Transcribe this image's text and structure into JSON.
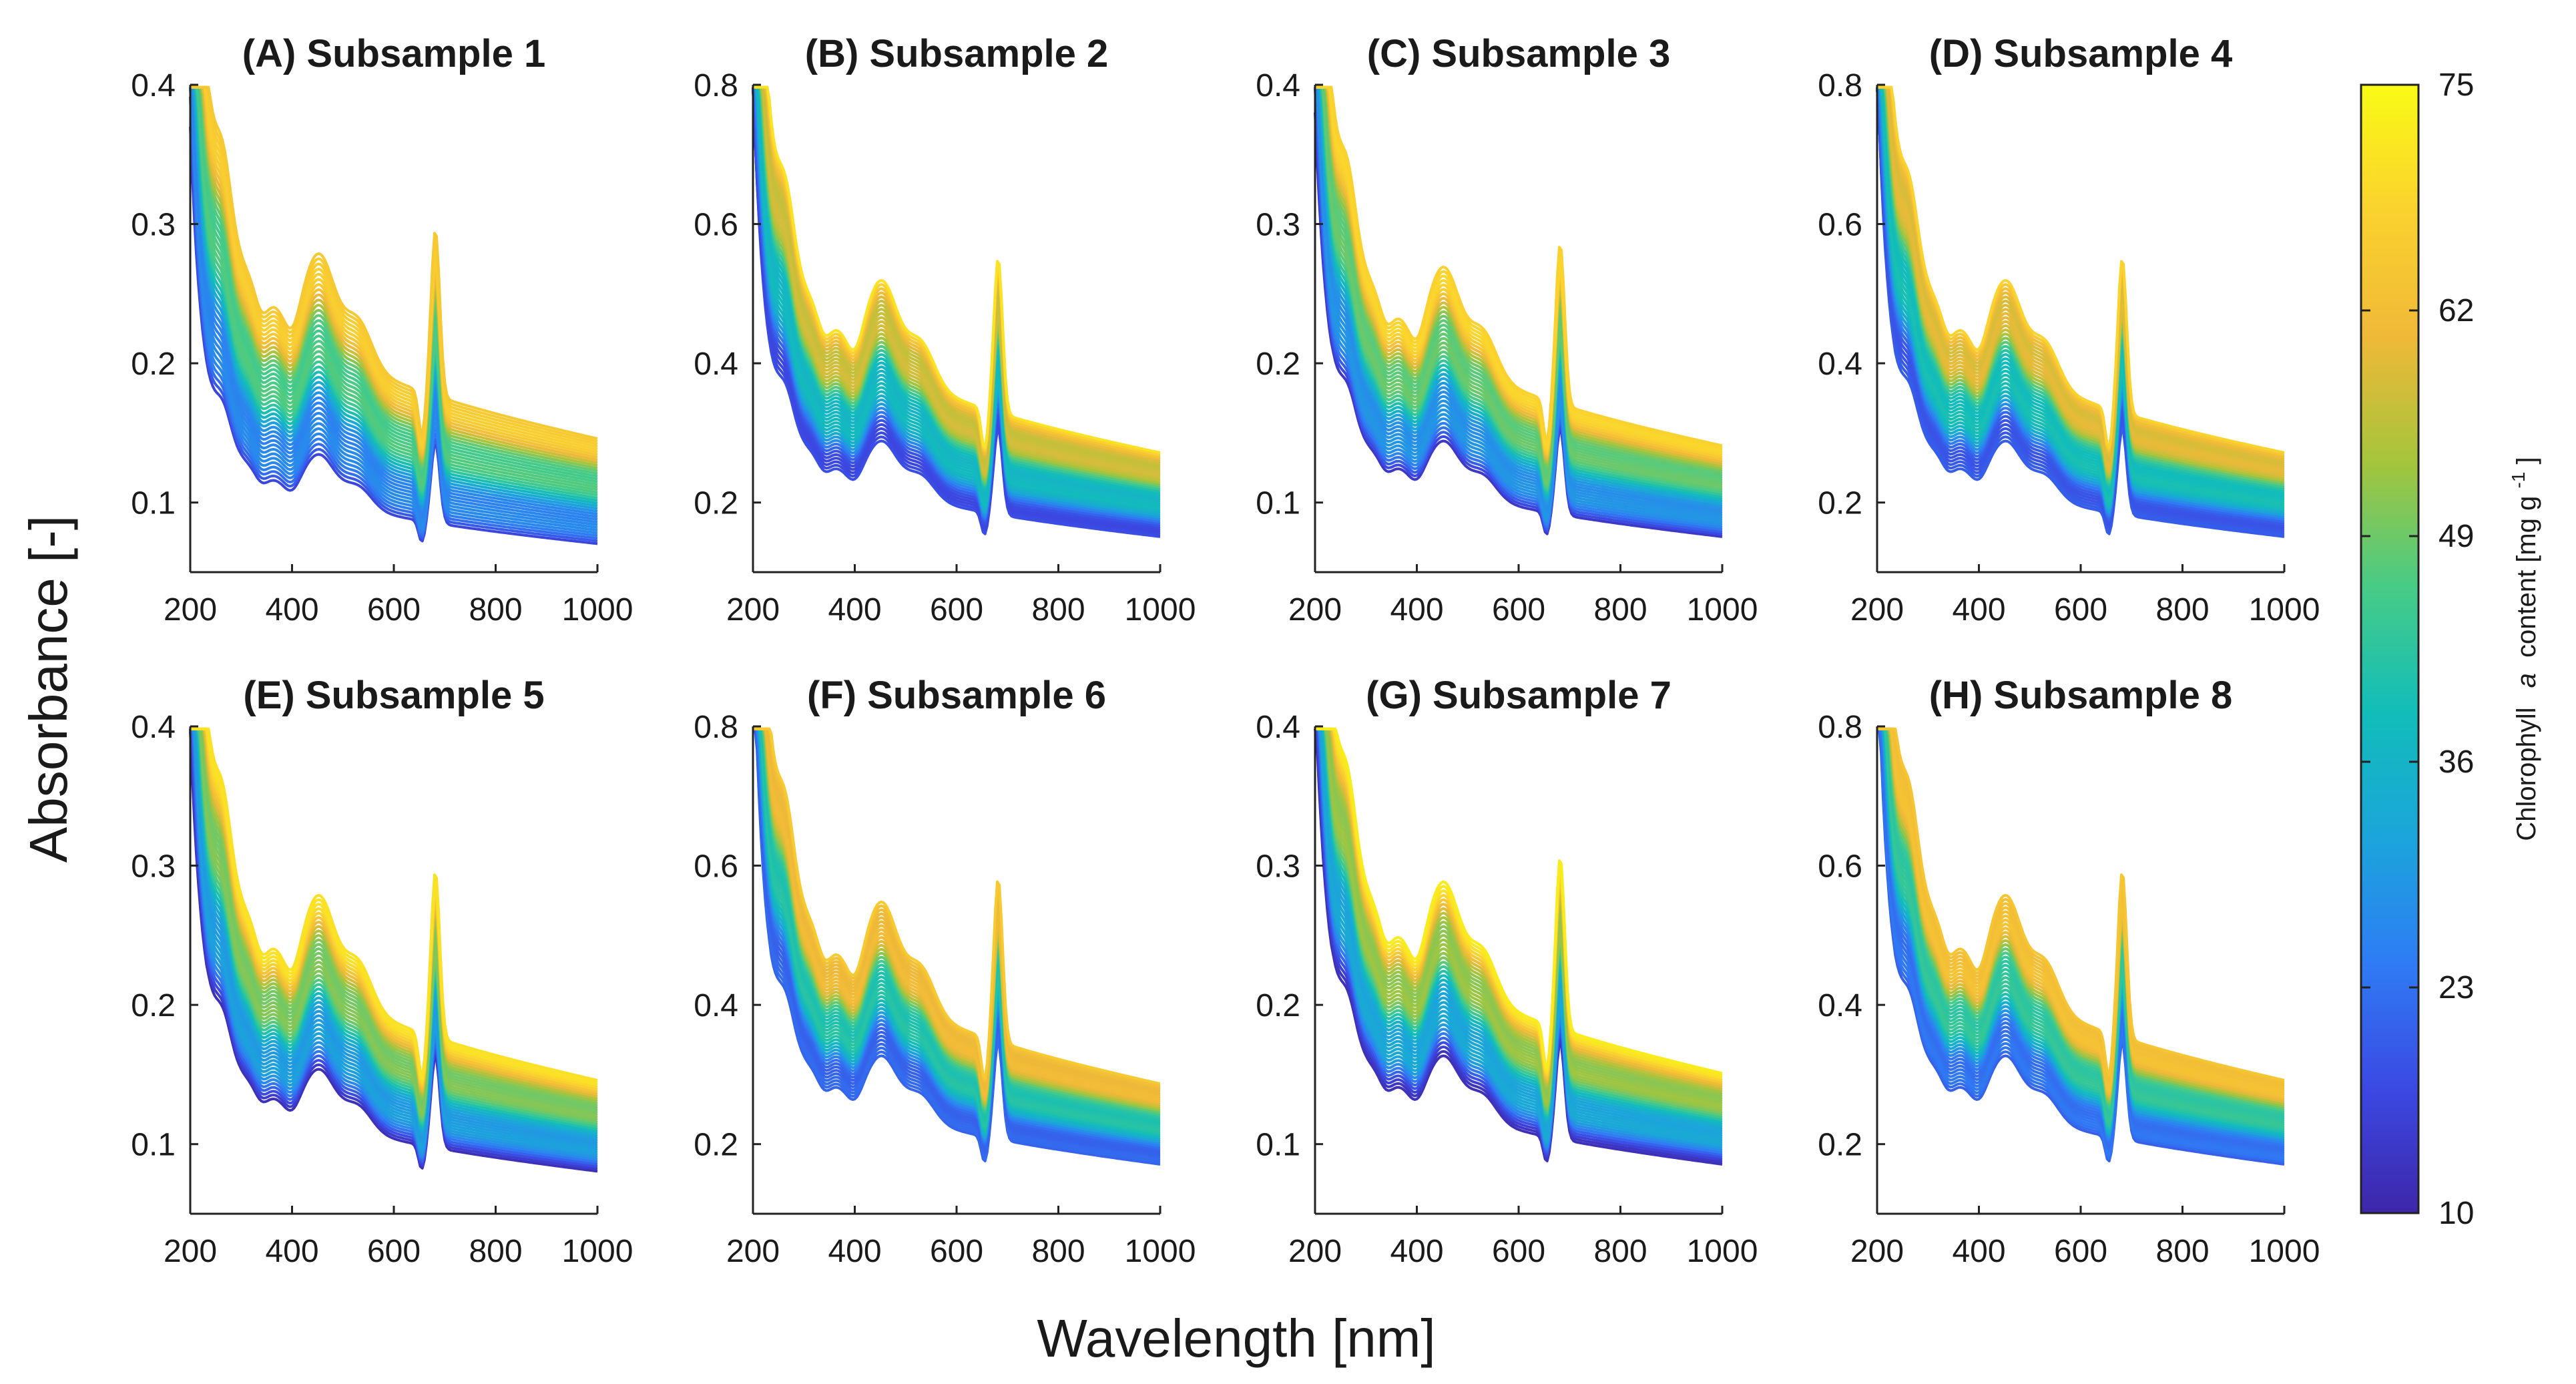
{
  "figure": {
    "xlabel": "Wavelength [nm]",
    "ylabel": "Absorbance [-]",
    "colorbar": {
      "label_prefix": "Chlorophyll",
      "label_italic": "a",
      "label_suffix": "content [mg g",
      "label_superscript": "-1",
      "label_close": "]",
      "ticks": [
        "75",
        "62",
        "49",
        "36",
        "23",
        "10"
      ],
      "range": [
        10,
        75
      ],
      "colors": [
        "#3e26a8",
        "#3b49e3",
        "#2f7cf4",
        "#1ba5da",
        "#12bdb9",
        "#48cb86",
        "#a6c43c",
        "#f0b938",
        "#fad22f",
        "#f9fb15"
      ]
    }
  },
  "chart_data": [
    {
      "type": "line",
      "title": "(A) Subsample 1",
      "xlabel": "",
      "ylabel": "",
      "xlim": [
        200,
        1000
      ],
      "ylim": [
        0.05,
        0.4
      ],
      "xticks": [
        "200",
        "400",
        "600",
        "800",
        "1000"
      ],
      "yticks": [
        "0.1",
        "0.2",
        "0.3",
        "0.4"
      ],
      "ytick_values": [
        0.1,
        0.2,
        0.3,
        0.4
      ],
      "curve_count": 40,
      "low_curve_at_1000": 0.07,
      "high_curve_at_1000": 0.145,
      "approx_peak_nm": [
        200,
        450,
        680
      ],
      "color_variable": "Chlorophyll a content [mg g-1]"
    },
    {
      "type": "line",
      "title": "(B) Subsample 2",
      "xlabel": "",
      "ylabel": "",
      "xlim": [
        200,
        1000
      ],
      "ylim": [
        0.1,
        0.8
      ],
      "xticks": [
        "200",
        "400",
        "600",
        "800",
        "1000"
      ],
      "yticks": [
        "0.2",
        "0.4",
        "0.6",
        "0.8"
      ],
      "ytick_values": [
        0.2,
        0.4,
        0.6,
        0.8
      ],
      "curve_count": 40,
      "low_curve_at_1000": 0.15,
      "high_curve_at_1000": 0.27,
      "approx_peak_nm": [
        200,
        450,
        680
      ],
      "color_variable": "Chlorophyll a content [mg g-1]"
    },
    {
      "type": "line",
      "title": "(C) Subsample 3",
      "xlabel": "",
      "ylabel": "",
      "xlim": [
        200,
        1000
      ],
      "ylim": [
        0.05,
        0.4
      ],
      "xticks": [
        "200",
        "400",
        "600",
        "800",
        "1000"
      ],
      "yticks": [
        "0.1",
        "0.2",
        "0.3",
        "0.4"
      ],
      "ytick_values": [
        0.1,
        0.2,
        0.3,
        0.4
      ],
      "curve_count": 40,
      "low_curve_at_1000": 0.075,
      "high_curve_at_1000": 0.14,
      "approx_peak_nm": [
        200,
        450,
        680
      ],
      "color_variable": "Chlorophyll a content [mg g-1]"
    },
    {
      "type": "line",
      "title": "(D) Subsample 4",
      "xlabel": "",
      "ylabel": "",
      "xlim": [
        200,
        1000
      ],
      "ylim": [
        0.1,
        0.8
      ],
      "xticks": [
        "200",
        "400",
        "600",
        "800",
        "1000"
      ],
      "yticks": [
        "0.2",
        "0.4",
        "0.6",
        "0.8"
      ],
      "ytick_values": [
        0.2,
        0.4,
        0.6,
        0.8
      ],
      "curve_count": 40,
      "low_curve_at_1000": 0.15,
      "high_curve_at_1000": 0.27,
      "approx_peak_nm": [
        200,
        450,
        680
      ],
      "color_variable": "Chlorophyll a content [mg g-1]"
    },
    {
      "type": "line",
      "title": "(E) Subsample 5",
      "xlabel": "",
      "ylabel": "",
      "xlim": [
        200,
        1000
      ],
      "ylim": [
        0.05,
        0.4
      ],
      "xticks": [
        "200",
        "400",
        "600",
        "800",
        "1000"
      ],
      "yticks": [
        "0.1",
        "0.2",
        "0.3",
        "0.4"
      ],
      "ytick_values": [
        0.1,
        0.2,
        0.3,
        0.4
      ],
      "curve_count": 40,
      "low_curve_at_1000": 0.08,
      "high_curve_at_1000": 0.145,
      "approx_peak_nm": [
        200,
        450,
        680
      ],
      "color_variable": "Chlorophyll a content [mg g-1]"
    },
    {
      "type": "line",
      "title": "(F) Subsample 6",
      "xlabel": "",
      "ylabel": "",
      "xlim": [
        200,
        1000
      ],
      "ylim": [
        0.1,
        0.8
      ],
      "xticks": [
        "200",
        "400",
        "600",
        "800",
        "1000"
      ],
      "yticks": [
        "0.2",
        "0.4",
        "0.6",
        "0.8"
      ],
      "ytick_values": [
        0.2,
        0.4,
        0.6,
        0.8
      ],
      "curve_count": 40,
      "low_curve_at_1000": 0.17,
      "high_curve_at_1000": 0.285,
      "approx_peak_nm": [
        200,
        450,
        680
      ],
      "color_variable": "Chlorophyll a content [mg g-1]"
    },
    {
      "type": "line",
      "title": "(G) Subsample 7",
      "xlabel": "",
      "ylabel": "",
      "xlim": [
        200,
        1000
      ],
      "ylim": [
        0.05,
        0.4
      ],
      "xticks": [
        "200",
        "400",
        "600",
        "800",
        "1000"
      ],
      "yticks": [
        "0.1",
        "0.2",
        "0.3",
        "0.4"
      ],
      "ytick_values": [
        0.1,
        0.2,
        0.3,
        0.4
      ],
      "curve_count": 40,
      "low_curve_at_1000": 0.085,
      "high_curve_at_1000": 0.15,
      "approx_peak_nm": [
        200,
        450,
        680
      ],
      "color_variable": "Chlorophyll a content [mg g-1]"
    },
    {
      "type": "line",
      "title": "(H) Subsample 8",
      "xlabel": "",
      "ylabel": "",
      "xlim": [
        200,
        1000
      ],
      "ylim": [
        0.1,
        0.8
      ],
      "xticks": [
        "200",
        "400",
        "600",
        "800",
        "1000"
      ],
      "yticks": [
        "0.2",
        "0.4",
        "0.6",
        "0.8"
      ],
      "ytick_values": [
        0.2,
        0.4,
        0.6,
        0.8
      ],
      "curve_count": 40,
      "low_curve_at_1000": 0.17,
      "high_curve_at_1000": 0.29,
      "approx_peak_nm": [
        200,
        450,
        680
      ],
      "color_variable": "Chlorophyll a content [mg g-1]"
    }
  ]
}
